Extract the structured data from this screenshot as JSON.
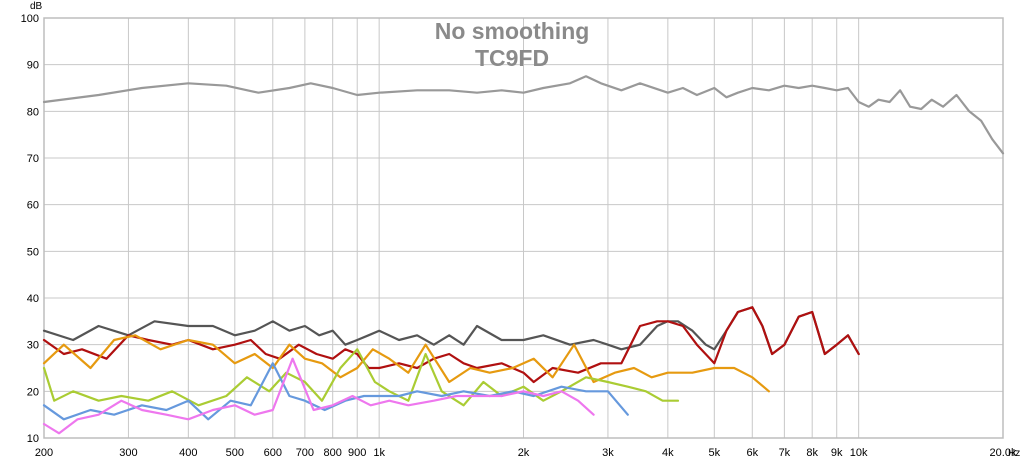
{
  "chart_data": {
    "type": "line",
    "title": "No smoothing",
    "subtitle": "TC9FD",
    "ylabel": "dB",
    "xlabel": "Hz",
    "x_scale": "log",
    "xlim": [
      200,
      20000
    ],
    "ylim": [
      10,
      100
    ],
    "grid": true,
    "x_ticks": [
      {
        "value": 200,
        "label": "200"
      },
      {
        "value": 300,
        "label": "300"
      },
      {
        "value": 400,
        "label": "400"
      },
      {
        "value": 500,
        "label": "500"
      },
      {
        "value": 600,
        "label": "600"
      },
      {
        "value": 700,
        "label": "700"
      },
      {
        "value": 800,
        "label": "800"
      },
      {
        "value": 900,
        "label": "900"
      },
      {
        "value": 1000,
        "label": "1k"
      },
      {
        "value": 2000,
        "label": "2k"
      },
      {
        "value": 3000,
        "label": "3k"
      },
      {
        "value": 4000,
        "label": "4k"
      },
      {
        "value": 5000,
        "label": "5k"
      },
      {
        "value": 6000,
        "label": "6k"
      },
      {
        "value": 7000,
        "label": "7k"
      },
      {
        "value": 8000,
        "label": "8k"
      },
      {
        "value": 9000,
        "label": "9k"
      },
      {
        "value": 10000,
        "label": "10k"
      },
      {
        "value": 20000,
        "label": "20.0k"
      }
    ],
    "y_ticks": [
      10,
      20,
      30,
      40,
      50,
      60,
      70,
      80,
      90,
      100
    ],
    "series": [
      {
        "color": "#999999",
        "x": [
          200,
          260,
          320,
          400,
          480,
          560,
          650,
          720,
          800,
          900,
          1000,
          1200,
          1400,
          1600,
          1800,
          2000,
          2200,
          2500,
          2700,
          2900,
          3200,
          3500,
          4000,
          4300,
          4600,
          5000,
          5300,
          5600,
          6000,
          6500,
          7000,
          7500,
          8000,
          8500,
          9000,
          9500,
          10000,
          10500,
          11000,
          11600,
          12200,
          12800,
          13500,
          14200,
          15000,
          16000,
          17000,
          18000,
          19000,
          20000
        ],
        "y": [
          82,
          83.5,
          85,
          86,
          85.5,
          84,
          85,
          86,
          85,
          83.5,
          84,
          84.5,
          84.5,
          84,
          84.5,
          84,
          85,
          86,
          87.5,
          86,
          84.5,
          86,
          84,
          85,
          83.5,
          85,
          83,
          84,
          85,
          84.5,
          85.5,
          85,
          85.5,
          85,
          84.5,
          85,
          82,
          81,
          82.5,
          82,
          84.5,
          81,
          80.5,
          82.5,
          81,
          83.5,
          80,
          78,
          74,
          71
        ]
      },
      {
        "color": "#555555",
        "x": [
          200,
          230,
          260,
          300,
          340,
          400,
          450,
          500,
          550,
          600,
          650,
          700,
          750,
          800,
          850,
          900,
          950,
          1000,
          1100,
          1200,
          1300,
          1400,
          1500,
          1600,
          1800,
          2000,
          2200,
          2500,
          2800,
          3000,
          3200,
          3500,
          3800,
          4000,
          4200,
          4500,
          4800,
          5000,
          5300,
          5600,
          6000,
          6300,
          6600,
          7000,
          7500,
          8000,
          8500,
          9000,
          9500,
          10000
        ],
        "y": [
          33,
          31,
          34,
          32,
          35,
          34,
          34,
          32,
          33,
          35,
          33,
          34,
          32,
          33,
          30,
          31,
          32,
          33,
          31,
          32,
          30,
          32,
          30,
          34,
          31,
          31,
          32,
          30,
          31,
          30,
          29,
          30,
          34,
          35,
          35,
          33,
          30,
          29,
          33,
          37,
          38,
          34,
          28,
          30,
          36,
          37,
          28,
          30,
          32,
          28
        ]
      },
      {
        "color": "#b01010",
        "x": [
          200,
          220,
          240,
          270,
          300,
          330,
          370,
          400,
          450,
          500,
          540,
          580,
          620,
          680,
          740,
          800,
          850,
          900,
          950,
          1000,
          1100,
          1200,
          1300,
          1400,
          1500,
          1600,
          1800,
          2000,
          2100,
          2300,
          2600,
          2900,
          3200,
          3500,
          3800,
          4000,
          4300,
          4600,
          5000,
          5300,
          5600,
          6000,
          6300,
          6600,
          7000,
          7500,
          8000,
          8500,
          9000,
          9500,
          10000
        ],
        "y": [
          31,
          28,
          29,
          27,
          32,
          31,
          30,
          31,
          29,
          30,
          31,
          28,
          27,
          30,
          28,
          27,
          29,
          28,
          25,
          25,
          26,
          25,
          27,
          28,
          26,
          25,
          26,
          24,
          22,
          25,
          24,
          26,
          26,
          34,
          35,
          35,
          34,
          30,
          26,
          33,
          37,
          38,
          34,
          28,
          30,
          36,
          37,
          28,
          30,
          32,
          28
        ]
      },
      {
        "color": "#e69a10",
        "x": [
          200,
          220,
          250,
          280,
          310,
          350,
          400,
          450,
          500,
          550,
          600,
          650,
          700,
          760,
          830,
          900,
          970,
          1050,
          1150,
          1250,
          1400,
          1550,
          1700,
          1900,
          2100,
          2300,
          2550,
          2800,
          3100,
          3400,
          3700,
          4000,
          4500,
          5000,
          5500,
          6000,
          6500
        ],
        "y": [
          26,
          30,
          25,
          31,
          32,
          29,
          31,
          30,
          26,
          28,
          25,
          30,
          27,
          26,
          23,
          25,
          29,
          27,
          24,
          30,
          22,
          25,
          24,
          25,
          27,
          23,
          30,
          22,
          24,
          25,
          23,
          24,
          24,
          25,
          25,
          23,
          20
        ]
      },
      {
        "color": "#aacc33",
        "x": [
          200,
          210,
          230,
          260,
          290,
          330,
          370,
          420,
          480,
          530,
          590,
          640,
          700,
          760,
          830,
          900,
          980,
          1050,
          1150,
          1250,
          1350,
          1500,
          1650,
          1800,
          2000,
          2200,
          2400,
          2700,
          3000,
          3300,
          3600,
          3900,
          4200
        ],
        "y": [
          25,
          18,
          20,
          18,
          19,
          18,
          20,
          17,
          19,
          23,
          20,
          24,
          22,
          18,
          25,
          29,
          22,
          20,
          18,
          28,
          20,
          17,
          22,
          19,
          21,
          18,
          20,
          23,
          22,
          21,
          20,
          18,
          18
        ]
      },
      {
        "color": "#6699dd",
        "x": [
          200,
          220,
          250,
          280,
          320,
          360,
          400,
          440,
          490,
          540,
          600,
          650,
          700,
          770,
          850,
          930,
          1000,
          1100,
          1200,
          1350,
          1500,
          1700,
          1900,
          2100,
          2400,
          2700,
          3000,
          3300
        ],
        "y": [
          17,
          14,
          16,
          15,
          17,
          16,
          18,
          14,
          18,
          17,
          26,
          19,
          18,
          16,
          18,
          19,
          19,
          19,
          20,
          19,
          20,
          19,
          20,
          19,
          21,
          20,
          20,
          15
        ]
      },
      {
        "color": "#ee77ee",
        "x": [
          200,
          215,
          235,
          260,
          290,
          320,
          360,
          400,
          450,
          500,
          550,
          600,
          660,
          730,
          800,
          880,
          960,
          1050,
          1150,
          1300,
          1450,
          1600,
          1800,
          2000,
          2200,
          2400,
          2600,
          2800
        ],
        "y": [
          13,
          11,
          14,
          15,
          18,
          16,
          15,
          14,
          16,
          17,
          15,
          16,
          27,
          16,
          17,
          19,
          17,
          18,
          17,
          18,
          19,
          19,
          19,
          20,
          19,
          20,
          18,
          15
        ]
      }
    ]
  }
}
